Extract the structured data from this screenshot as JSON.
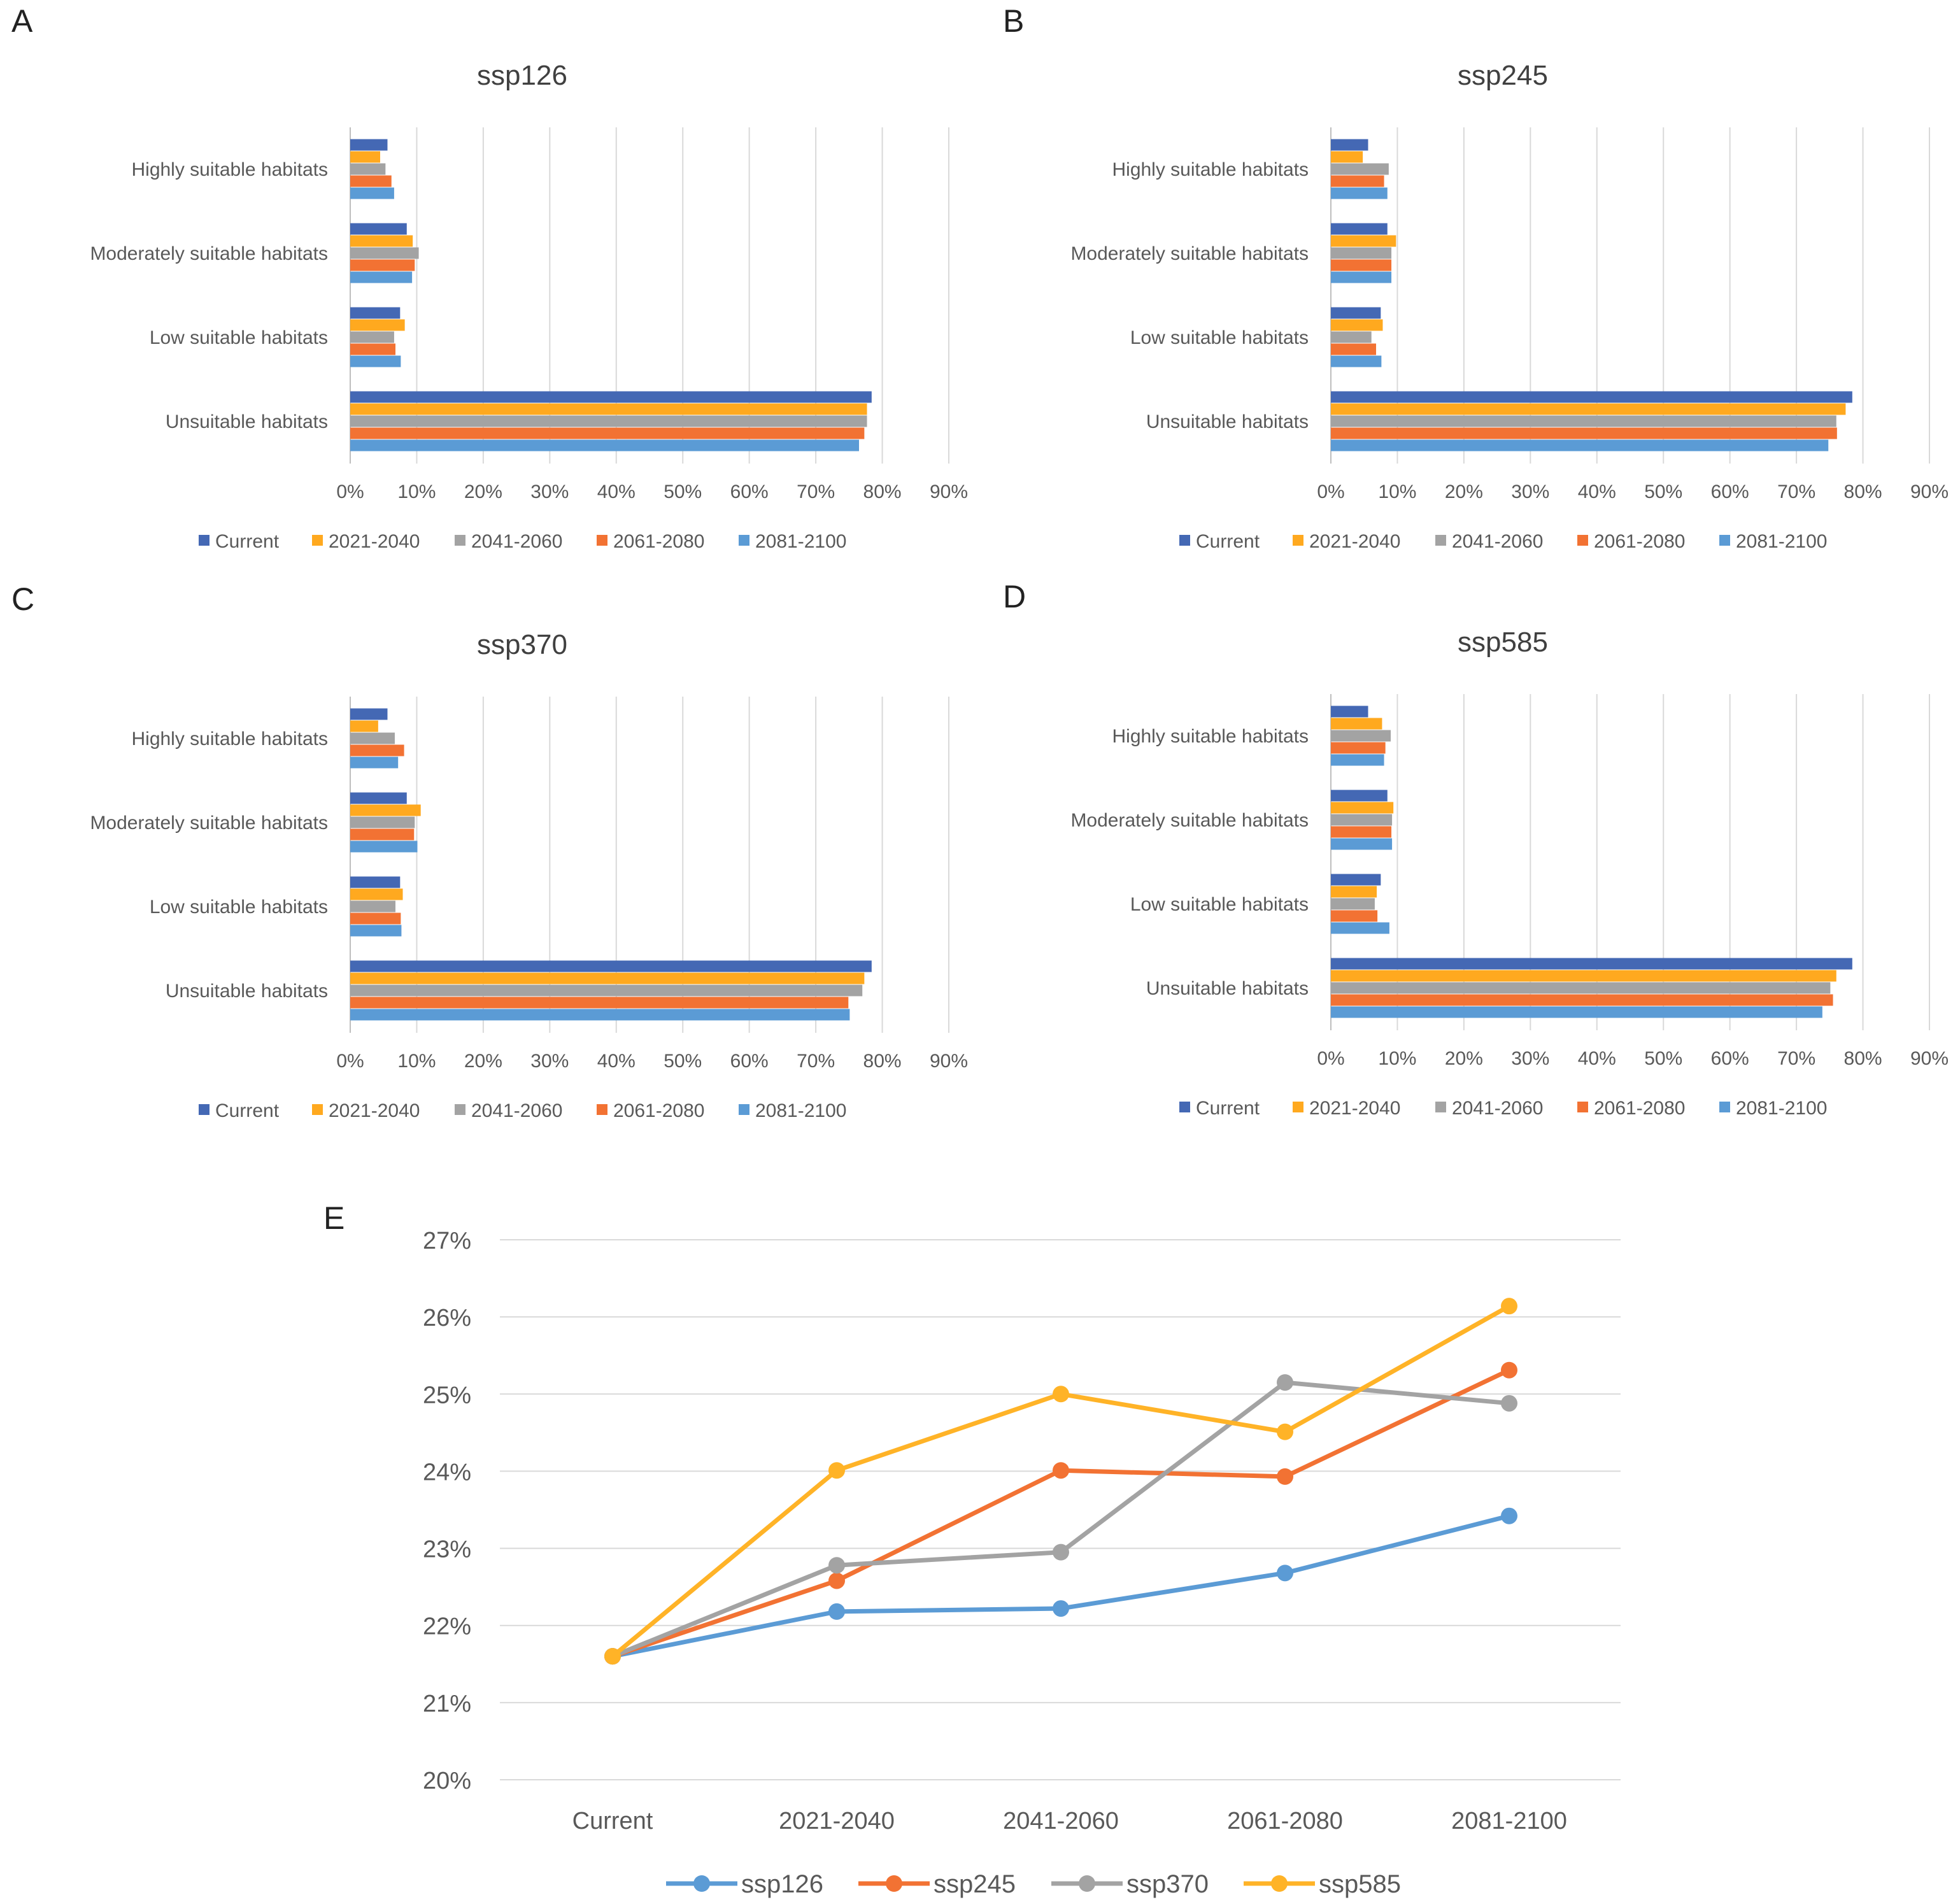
{
  "colors": {
    "Current": "#4468B4",
    "2021-2040": "#FFA91F",
    "2041-2060": "#A3A3A3",
    "2061-2080": "#F27233",
    "2081-2100": "#5B9BD5",
    "ssp126": "#5B9BD5",
    "ssp245": "#F27233",
    "ssp370": "#A3A3A3",
    "ssp585": "#FFB327",
    "grid": "#d9d9d9",
    "axis": "#bfbfbf"
  },
  "chart_data": [
    {
      "type": "bar",
      "orientation": "horizontal",
      "panel": "A",
      "title": "ssp126",
      "categories": [
        "Highly suitable habitats",
        "Moderately suitable habitats",
        "Low suitable habitats",
        "Unsuitable habitats"
      ],
      "series": [
        {
          "name": "Current",
          "values": [
            5.6,
            8.5,
            7.5,
            78.4
          ]
        },
        {
          "name": "2021-2040",
          "values": [
            4.5,
            9.4,
            8.2,
            77.7
          ]
        },
        {
          "name": "2041-2060",
          "values": [
            5.3,
            10.3,
            6.6,
            77.7
          ]
        },
        {
          "name": "2061-2080",
          "values": [
            6.2,
            9.7,
            6.8,
            77.3
          ]
        },
        {
          "name": "2081-2100",
          "values": [
            6.6,
            9.3,
            7.6,
            76.5
          ]
        }
      ],
      "xlim": [
        0,
        90
      ],
      "xticks": [
        "0%",
        "10%",
        "20%",
        "30%",
        "40%",
        "50%",
        "60%",
        "70%",
        "80%",
        "90%"
      ],
      "legend": "bottom"
    },
    {
      "type": "bar",
      "orientation": "horizontal",
      "panel": "B",
      "title": "ssp245",
      "categories": [
        "Highly suitable habitats",
        "Moderately suitable habitats",
        "Low suitable habitats",
        "Unsuitable habitats"
      ],
      "series": [
        {
          "name": "Current",
          "values": [
            5.6,
            8.5,
            7.5,
            78.4
          ]
        },
        {
          "name": "2021-2040",
          "values": [
            4.8,
            9.8,
            7.8,
            77.4
          ]
        },
        {
          "name": "2041-2060",
          "values": [
            8.7,
            9.1,
            6.1,
            76.0
          ]
        },
        {
          "name": "2061-2080",
          "values": [
            8.0,
            9.1,
            6.8,
            76.1
          ]
        },
        {
          "name": "2081-2100",
          "values": [
            8.5,
            9.1,
            7.6,
            74.8
          ]
        }
      ],
      "xlim": [
        0,
        90
      ],
      "xticks": [
        "0%",
        "10%",
        "20%",
        "30%",
        "40%",
        "50%",
        "60%",
        "70%",
        "80%",
        "90%"
      ],
      "legend": "bottom"
    },
    {
      "type": "bar",
      "orientation": "horizontal",
      "panel": "C",
      "title": "ssp370",
      "categories": [
        "Highly suitable habitats",
        "Moderately suitable habitats",
        "Low suitable habitats",
        "Unsuitable habitats"
      ],
      "series": [
        {
          "name": "Current",
          "values": [
            5.6,
            8.5,
            7.5,
            78.4
          ]
        },
        {
          "name": "2021-2040",
          "values": [
            4.2,
            10.6,
            7.9,
            77.3
          ]
        },
        {
          "name": "2041-2060",
          "values": [
            6.7,
            9.7,
            6.8,
            77.0
          ]
        },
        {
          "name": "2061-2080",
          "values": [
            8.1,
            9.6,
            7.6,
            74.9
          ]
        },
        {
          "name": "2081-2100",
          "values": [
            7.2,
            10.1,
            7.7,
            75.1
          ]
        }
      ],
      "xlim": [
        0,
        90
      ],
      "xticks": [
        "0%",
        "10%",
        "20%",
        "30%",
        "40%",
        "50%",
        "60%",
        "70%",
        "80%",
        "90%"
      ],
      "legend": "bottom"
    },
    {
      "type": "bar",
      "orientation": "horizontal",
      "panel": "D",
      "title": "ssp585",
      "categories": [
        "Highly suitable habitats",
        "Moderately suitable habitats",
        "Low suitable habitats",
        "Unsuitable habitats"
      ],
      "series": [
        {
          "name": "Current",
          "values": [
            5.6,
            8.5,
            7.5,
            78.4
          ]
        },
        {
          "name": "2021-2040",
          "values": [
            7.7,
            9.4,
            6.9,
            76.0
          ]
        },
        {
          "name": "2041-2060",
          "values": [
            9.0,
            9.2,
            6.6,
            75.1
          ]
        },
        {
          "name": "2061-2080",
          "values": [
            8.2,
            9.1,
            7.0,
            75.5
          ]
        },
        {
          "name": "2081-2100",
          "values": [
            8.0,
            9.2,
            8.8,
            73.9
          ]
        }
      ],
      "xlim": [
        0,
        90
      ],
      "xticks": [
        "0%",
        "10%",
        "20%",
        "30%",
        "40%",
        "50%",
        "60%",
        "70%",
        "80%",
        "90%"
      ],
      "legend": "bottom"
    },
    {
      "type": "line",
      "panel": "E",
      "categories": [
        "Current",
        "2021-2040",
        "2041-2060",
        "2061-2080",
        "2081-2100"
      ],
      "series": [
        {
          "name": "ssp126",
          "values": [
            21.6,
            22.18,
            22.22,
            22.68,
            23.42
          ]
        },
        {
          "name": "ssp245",
          "values": [
            21.6,
            22.58,
            24.01,
            23.93,
            25.31
          ]
        },
        {
          "name": "ssp370",
          "values": [
            21.6,
            22.78,
            22.95,
            25.15,
            24.88
          ]
        },
        {
          "name": "ssp585",
          "values": [
            21.6,
            24.01,
            25.0,
            24.51,
            26.14
          ]
        }
      ],
      "ylim": [
        20,
        27
      ],
      "yticks": [
        "20%",
        "21%",
        "22%",
        "23%",
        "24%",
        "25%",
        "26%",
        "27%"
      ],
      "legend": "bottom",
      "grid": true
    }
  ]
}
